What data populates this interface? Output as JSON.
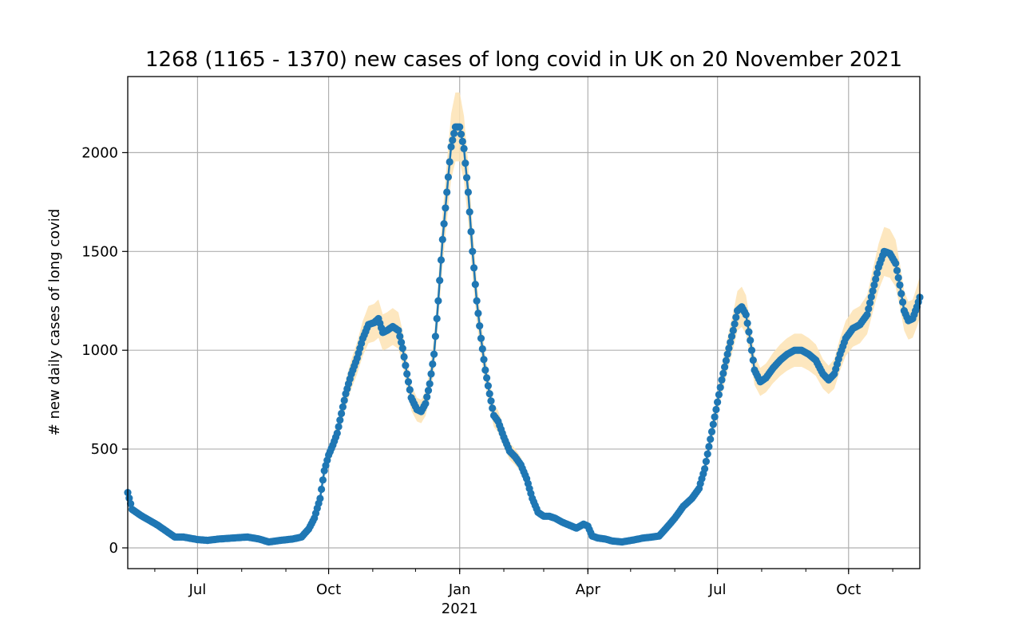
{
  "chart_data": {
    "type": "line",
    "title": "1268 (1165 - 1370) new cases of long covid in UK on 20 November 2021",
    "ylabel": "# new daily cases of long covid",
    "xlabel": "",
    "xlim": [
      "2020-05-13",
      "2021-11-20"
    ],
    "ylim": [
      -105,
      2385
    ],
    "yticks": [
      0,
      500,
      1000,
      1500,
      2000
    ],
    "xticks": [
      {
        "date": "2020-07-01",
        "label": "Jul",
        "sublabel": ""
      },
      {
        "date": "2020-10-01",
        "label": "Oct",
        "sublabel": ""
      },
      {
        "date": "2021-01-01",
        "label": "Jan",
        "sublabel": "2021"
      },
      {
        "date": "2021-04-01",
        "label": "Apr",
        "sublabel": ""
      },
      {
        "date": "2021-07-01",
        "label": "Jul",
        "sublabel": ""
      },
      {
        "date": "2021-10-01",
        "label": "Oct",
        "sublabel": ""
      }
    ],
    "grid": true,
    "colors": {
      "line": "#1f77b4",
      "band": "#fde3b4"
    },
    "series": [
      {
        "name": "",
        "points": [
          [
            "2020-05-13",
            280
          ],
          [
            "2020-05-16",
            195
          ],
          [
            "2020-05-22",
            165
          ],
          [
            "2020-05-28",
            140
          ],
          [
            "2020-06-03",
            115
          ],
          [
            "2020-06-09",
            85
          ],
          [
            "2020-06-15",
            55
          ],
          [
            "2020-06-21",
            55
          ],
          [
            "2020-07-01",
            42
          ],
          [
            "2020-07-08",
            38
          ],
          [
            "2020-07-16",
            45
          ],
          [
            "2020-07-26",
            50
          ],
          [
            "2020-08-05",
            55
          ],
          [
            "2020-08-13",
            45
          ],
          [
            "2020-08-20",
            30
          ],
          [
            "2020-08-28",
            38
          ],
          [
            "2020-09-06",
            45
          ],
          [
            "2020-09-12",
            55
          ],
          [
            "2020-09-17",
            95
          ],
          [
            "2020-09-21",
            150
          ],
          [
            "2020-09-25",
            250
          ],
          [
            "2020-09-28",
            390
          ],
          [
            "2020-10-01",
            470
          ],
          [
            "2020-10-04",
            520
          ],
          [
            "2020-10-07",
            580
          ],
          [
            "2020-10-10",
            680
          ],
          [
            "2020-10-13",
            780
          ],
          [
            "2020-10-17",
            880
          ],
          [
            "2020-10-21",
            960
          ],
          [
            "2020-10-25",
            1060
          ],
          [
            "2020-10-29",
            1130
          ],
          [
            "2020-11-02",
            1140
          ],
          [
            "2020-11-05",
            1160
          ],
          [
            "2020-11-08",
            1090
          ],
          [
            "2020-11-11",
            1100
          ],
          [
            "2020-11-15",
            1120
          ],
          [
            "2020-11-19",
            1100
          ],
          [
            "2020-11-22",
            1010
          ],
          [
            "2020-11-25",
            880
          ],
          [
            "2020-11-28",
            760
          ],
          [
            "2020-12-02",
            700
          ],
          [
            "2020-12-05",
            690
          ],
          [
            "2020-12-08",
            730
          ],
          [
            "2020-12-11",
            830
          ],
          [
            "2020-12-14",
            980
          ],
          [
            "2020-12-17",
            1250
          ],
          [
            "2020-12-20",
            1560
          ],
          [
            "2020-12-23",
            1800
          ],
          [
            "2020-12-26",
            2030
          ],
          [
            "2020-12-29",
            2130
          ],
          [
            "2021-01-01",
            2130
          ],
          [
            "2021-01-04",
            2020
          ],
          [
            "2021-01-07",
            1800
          ],
          [
            "2021-01-10",
            1500
          ],
          [
            "2021-01-13",
            1250
          ],
          [
            "2021-01-16",
            1060
          ],
          [
            "2021-01-19",
            900
          ],
          [
            "2021-01-22",
            780
          ],
          [
            "2021-01-25",
            670
          ],
          [
            "2021-01-28",
            640
          ],
          [
            "2021-02-01",
            560
          ],
          [
            "2021-02-05",
            490
          ],
          [
            "2021-02-09",
            460
          ],
          [
            "2021-02-13",
            420
          ],
          [
            "2021-02-17",
            350
          ],
          [
            "2021-02-21",
            250
          ],
          [
            "2021-02-25",
            180
          ],
          [
            "2021-03-01",
            160
          ],
          [
            "2021-03-05",
            160
          ],
          [
            "2021-03-09",
            150
          ],
          [
            "2021-03-14",
            130
          ],
          [
            "2021-03-19",
            115
          ],
          [
            "2021-03-24",
            100
          ],
          [
            "2021-03-29",
            120
          ],
          [
            "2021-04-01",
            110
          ],
          [
            "2021-04-04",
            60
          ],
          [
            "2021-04-08",
            50
          ],
          [
            "2021-04-13",
            45
          ],
          [
            "2021-04-18",
            35
          ],
          [
            "2021-04-25",
            30
          ],
          [
            "2021-05-03",
            40
          ],
          [
            "2021-05-10",
            50
          ],
          [
            "2021-05-16",
            55
          ],
          [
            "2021-05-21",
            60
          ],
          [
            "2021-05-26",
            100
          ],
          [
            "2021-06-01",
            150
          ],
          [
            "2021-06-07",
            210
          ],
          [
            "2021-06-13",
            250
          ],
          [
            "2021-06-18",
            300
          ],
          [
            "2021-06-22",
            400
          ],
          [
            "2021-06-26",
            550
          ],
          [
            "2021-06-30",
            700
          ],
          [
            "2021-07-04",
            850
          ],
          [
            "2021-07-08",
            980
          ],
          [
            "2021-07-12",
            1100
          ],
          [
            "2021-07-15",
            1200
          ],
          [
            "2021-07-18",
            1220
          ],
          [
            "2021-07-21",
            1180
          ],
          [
            "2021-07-24",
            1050
          ],
          [
            "2021-07-27",
            900
          ],
          [
            "2021-07-31",
            840
          ],
          [
            "2021-08-04",
            860
          ],
          [
            "2021-08-09",
            910
          ],
          [
            "2021-08-14",
            950
          ],
          [
            "2021-08-19",
            980
          ],
          [
            "2021-08-24",
            1000
          ],
          [
            "2021-08-29",
            1000
          ],
          [
            "2021-09-03",
            980
          ],
          [
            "2021-09-08",
            950
          ],
          [
            "2021-09-13",
            880
          ],
          [
            "2021-09-17",
            850
          ],
          [
            "2021-09-21",
            880
          ],
          [
            "2021-09-25",
            980
          ],
          [
            "2021-09-29",
            1060
          ],
          [
            "2021-10-04",
            1110
          ],
          [
            "2021-10-09",
            1130
          ],
          [
            "2021-10-14",
            1180
          ],
          [
            "2021-10-18",
            1300
          ],
          [
            "2021-10-22",
            1420
          ],
          [
            "2021-10-26",
            1500
          ],
          [
            "2021-10-30",
            1490
          ],
          [
            "2021-11-03",
            1440
          ],
          [
            "2021-11-06",
            1330
          ],
          [
            "2021-11-09",
            1200
          ],
          [
            "2021-11-12",
            1150
          ],
          [
            "2021-11-15",
            1160
          ],
          [
            "2021-11-18",
            1220
          ],
          [
            "2021-11-20",
            1268
          ]
        ]
      }
    ]
  }
}
